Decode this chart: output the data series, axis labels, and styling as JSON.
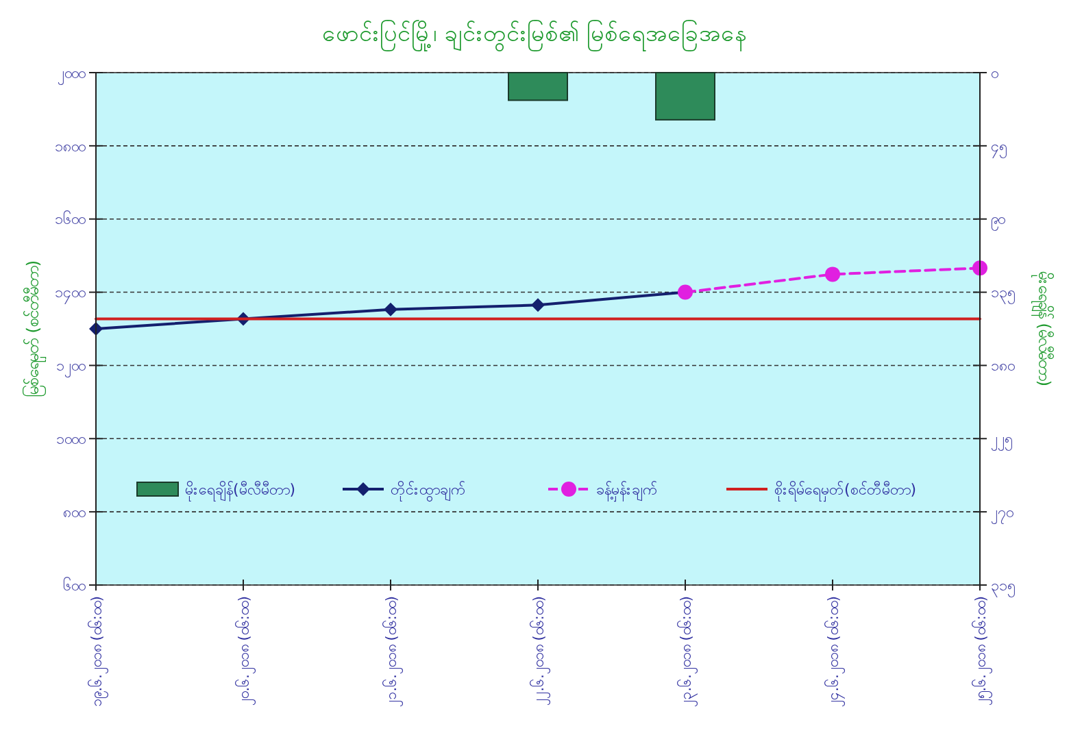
{
  "chart_data": {
    "type": "line",
    "title": "ဖောင်းပြင်မြို့၊ ချင်းတွင်းမြစ်၏ မြစ်ရေအခြေအနေ",
    "categories": [
      "၁၉.၆.၂၀၁၈ (၀၆:၀၀)",
      "၂၀.၆.၂၀၁၈ (၀၆:၀၀)",
      "၂၁.၆.၂၀၁၈ (၀၆:၀၀)",
      "၂၂.၆.၂၀၁၈ (၀၆:၀၀)",
      "၂၃.၆.၂၀၁၈ (၀၆:၀၀)",
      "၂၄.၆.၂၀၁၈ (၀၆:၀၀)",
      "၂၅.၆.၂၀၁၈ (၀၆:၀၀)"
    ],
    "ylabel": "မြစ်ရေမှတ် (စင်တီမီတာ)",
    "y2label": "မိုးရေချိန် (မီလီမီတာ)",
    "ylim": [
      600,
      2000
    ],
    "yticks": [
      {
        "value": 600,
        "label": "၆၀၀"
      },
      {
        "value": 800,
        "label": "၈၀၀"
      },
      {
        "value": 1000,
        "label": "၁၀၀၀"
      },
      {
        "value": 1200,
        "label": "၁၂၀၀"
      },
      {
        "value": 1400,
        "label": "၁၄၀၀"
      },
      {
        "value": 1600,
        "label": "၁၆၀၀"
      },
      {
        "value": 1800,
        "label": "၁၈၀၀"
      },
      {
        "value": 2000,
        "label": "၂၀၀၀"
      }
    ],
    "y2lim": [
      315,
      0
    ],
    "y2ticks": [
      {
        "value": 0,
        "label": "၀"
      },
      {
        "value": 45,
        "label": "၄၅"
      },
      {
        "value": 90,
        "label": "၉၀"
      },
      {
        "value": 135,
        "label": "၁၃၅"
      },
      {
        "value": 180,
        "label": "၁၈၀"
      },
      {
        "value": 225,
        "label": "၂၂၅"
      },
      {
        "value": 270,
        "label": "၂၇၀"
      },
      {
        "value": 315,
        "label": "၃၁၅"
      }
    ],
    "grid": "y",
    "legend": "bottom",
    "series": [
      {
        "name": "မိုးရေချိန်(မီလီမီတာ)",
        "type": "bar",
        "axis": "y2",
        "color": "#2e8b5a",
        "values": [
          null,
          null,
          null,
          17,
          29,
          null,
          null
        ]
      },
      {
        "name": "တိုင်းထွာချက်",
        "color": "#14206e",
        "marker": "diamond",
        "line_style": "solid",
        "values": [
          1300,
          1327,
          1353,
          1365,
          1400,
          null,
          null
        ]
      },
      {
        "name": "ခန့်မှန်းချက်",
        "color": "#e020e0",
        "marker": "circle",
        "line_style": "dashed",
        "values": [
          null,
          null,
          null,
          null,
          1400,
          1449,
          1466
        ]
      },
      {
        "name": "စိုးရိမ်ရေမှတ်(စင်တီမီတာ)",
        "color": "#d02020",
        "marker": "none",
        "line_style": "solid",
        "values": [
          1327,
          1327,
          1327,
          1327,
          1327,
          1327,
          1327
        ]
      }
    ]
  }
}
